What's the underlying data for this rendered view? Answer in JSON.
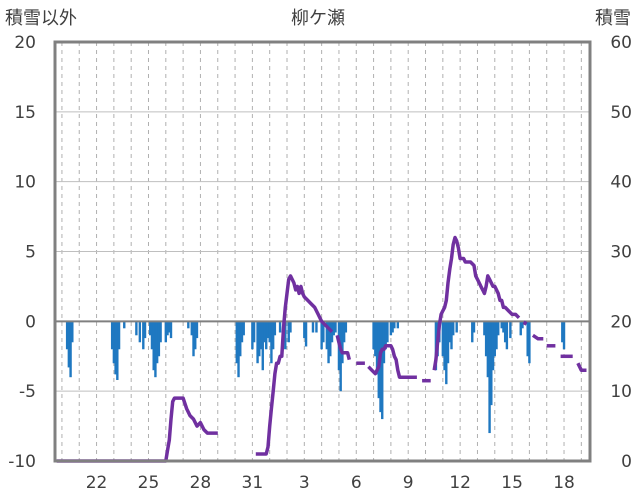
{
  "chart_data": {
    "type": "bar+line",
    "title": "柳ケ瀬",
    "left_axis": {
      "label": "積雪以外",
      "min": -10,
      "max": 20,
      "ticks": [
        -10,
        -5,
        0,
        5,
        10,
        15,
        20
      ]
    },
    "right_axis": {
      "label": "積雪",
      "min": 0,
      "max": 60,
      "ticks": [
        0,
        10,
        20,
        30,
        40,
        50,
        60
      ]
    },
    "x_axis": {
      "day_min": 20,
      "day_max": 49,
      "tick_days": [
        22,
        25,
        28,
        31,
        34,
        37,
        40,
        43,
        46,
        49
      ],
      "tick_labels": [
        "22",
        "25",
        "28",
        "31",
        "3",
        "6",
        "9",
        "12",
        "15",
        "18"
      ]
    },
    "gridlines": "vertical-dashed-every-day, horizontal-solid-at-left-ticks",
    "colors": {
      "bars": "#1f78c1",
      "line": "#7030a0",
      "zero_line": "#808080",
      "grid": "#b0b0b0",
      "frame": "#808080"
    },
    "series": [
      {
        "kind": "bar",
        "axis": "left",
        "points": [
          [
            20.3,
            -2.0
          ],
          [
            20.4,
            -3.3
          ],
          [
            20.5,
            -4.0
          ],
          [
            20.6,
            -1.5
          ],
          [
            22.9,
            -2.0
          ],
          [
            23.0,
            -3.0
          ],
          [
            23.1,
            -3.8
          ],
          [
            23.2,
            -4.2
          ],
          [
            23.3,
            -2.0
          ],
          [
            23.6,
            -0.5
          ],
          [
            24.3,
            -1.0
          ],
          [
            24.5,
            -1.5
          ],
          [
            24.7,
            -2.0
          ],
          [
            24.8,
            -1.2
          ],
          [
            25.1,
            -1.0
          ],
          [
            25.2,
            -2.0
          ],
          [
            25.3,
            -3.5
          ],
          [
            25.4,
            -4.0
          ],
          [
            25.5,
            -3.0
          ],
          [
            25.6,
            -2.5
          ],
          [
            25.7,
            -1.5
          ],
          [
            26.0,
            -1.5
          ],
          [
            26.1,
            -1.0
          ],
          [
            26.2,
            -0.8
          ],
          [
            26.3,
            -1.2
          ],
          [
            27.3,
            -0.5
          ],
          [
            27.5,
            -1.0
          ],
          [
            27.6,
            -2.5
          ],
          [
            27.7,
            -2.0
          ],
          [
            27.8,
            -1.2
          ],
          [
            30.1,
            -3.0
          ],
          [
            30.2,
            -4.0
          ],
          [
            30.3,
            -2.5
          ],
          [
            30.4,
            -1.5
          ],
          [
            30.5,
            -1.0
          ],
          [
            31.0,
            -2.0
          ],
          [
            31.1,
            -1.5
          ],
          [
            31.3,
            -3.0
          ],
          [
            31.4,
            -2.5
          ],
          [
            31.5,
            -2.0
          ],
          [
            31.6,
            -3.5
          ],
          [
            31.7,
            -1.5
          ],
          [
            31.8,
            -2.0
          ],
          [
            31.9,
            -1.2
          ],
          [
            32.0,
            -1.5
          ],
          [
            32.1,
            -3.0
          ],
          [
            32.2,
            -2.0
          ],
          [
            32.3,
            -1.0
          ],
          [
            32.6,
            -0.8
          ],
          [
            32.8,
            -1.5
          ],
          [
            32.9,
            -2.0
          ],
          [
            33.1,
            -1.5
          ],
          [
            33.2,
            -0.8
          ],
          [
            34.0,
            -1.2
          ],
          [
            34.1,
            -1.8
          ],
          [
            34.5,
            -0.8
          ],
          [
            34.7,
            -0.8
          ],
          [
            35.0,
            -2.0
          ],
          [
            35.1,
            -1.5
          ],
          [
            35.3,
            -2.0
          ],
          [
            35.4,
            -3.0
          ],
          [
            35.5,
            -2.5
          ],
          [
            35.6,
            -1.5
          ],
          [
            35.7,
            -1.0
          ],
          [
            35.8,
            -0.8
          ],
          [
            36.0,
            -3.5
          ],
          [
            36.1,
            -5.0
          ],
          [
            36.2,
            -3.0
          ],
          [
            36.3,
            -1.5
          ],
          [
            36.4,
            -0.8
          ],
          [
            38.0,
            -2.0
          ],
          [
            38.1,
            -2.5
          ],
          [
            38.2,
            -3.8
          ],
          [
            38.3,
            -5.5
          ],
          [
            38.4,
            -6.5
          ],
          [
            38.5,
            -7.0
          ],
          [
            38.6,
            -3.0
          ],
          [
            38.7,
            -2.0
          ],
          [
            38.8,
            -1.5
          ],
          [
            39.0,
            -1.0
          ],
          [
            39.1,
            -0.8
          ],
          [
            39.2,
            -0.5
          ],
          [
            39.4,
            -0.5
          ],
          [
            41.6,
            -3.5
          ],
          [
            41.7,
            -2.5
          ],
          [
            41.8,
            -1.5
          ],
          [
            42.0,
            -2.5
          ],
          [
            42.1,
            -3.5
          ],
          [
            42.2,
            -4.5
          ],
          [
            42.3,
            -3.0
          ],
          [
            42.4,
            -1.5
          ],
          [
            42.5,
            -2.0
          ],
          [
            42.6,
            -1.0
          ],
          [
            42.8,
            -0.8
          ],
          [
            43.7,
            -1.5
          ],
          [
            43.8,
            -0.8
          ],
          [
            44.4,
            -1.0
          ],
          [
            44.5,
            -2.5
          ],
          [
            44.6,
            -4.0
          ],
          [
            44.7,
            -8.0
          ],
          [
            44.8,
            -6.0
          ],
          [
            44.9,
            -3.5
          ],
          [
            45.0,
            -2.5
          ],
          [
            45.1,
            -2.0
          ],
          [
            45.2,
            -1.0
          ],
          [
            45.4,
            -0.5
          ],
          [
            45.5,
            -0.8
          ],
          [
            45.6,
            -1.5
          ],
          [
            45.7,
            -2.0
          ],
          [
            45.9,
            -1.2
          ],
          [
            46.5,
            -1.0
          ],
          [
            46.6,
            -0.5
          ],
          [
            46.9,
            -2.5
          ],
          [
            47.0,
            -3.0
          ],
          [
            48.9,
            -1.5
          ],
          [
            49.0,
            -2.0
          ]
        ]
      },
      {
        "kind": "line",
        "axis": "right",
        "segments": [
          [
            [
              19.7,
              0.0
            ],
            [
              26.0,
              0.0
            ],
            [
              26.1,
              1.5
            ],
            [
              26.2,
              3.0
            ],
            [
              26.3,
              6.0
            ],
            [
              26.4,
              8.5
            ],
            [
              26.5,
              9.0
            ],
            [
              27.0,
              9.0
            ],
            [
              27.2,
              7.5
            ],
            [
              27.4,
              6.5
            ],
            [
              27.6,
              6.0
            ],
            [
              27.8,
              5.0
            ],
            [
              28.0,
              5.5
            ],
            [
              28.2,
              4.5
            ],
            [
              28.4,
              4.0
            ],
            [
              28.6,
              4.0
            ],
            [
              28.8,
              4.0
            ],
            [
              29.0,
              4.0
            ]
          ],
          [
            [
              31.2,
              1.0
            ],
            [
              31.8,
              1.0
            ],
            [
              31.9,
              2.0
            ],
            [
              32.0,
              5.0
            ],
            [
              32.1,
              7.5
            ],
            [
              32.2,
              10.0
            ],
            [
              32.3,
              12.5
            ],
            [
              32.4,
              14.0
            ],
            [
              32.5,
              14.0
            ],
            [
              32.6,
              15.0
            ],
            [
              32.7,
              15.0
            ],
            [
              32.8,
              19.0
            ],
            [
              32.9,
              22.0
            ],
            [
              33.0,
              24.0
            ],
            [
              33.1,
              26.0
            ],
            [
              33.2,
              26.5
            ],
            [
              33.3,
              26.0
            ],
            [
              33.4,
              25.5
            ],
            [
              33.5,
              24.5
            ],
            [
              33.6,
              25.0
            ],
            [
              33.7,
              24.0
            ],
            [
              33.8,
              25.0
            ],
            [
              33.9,
              24.0
            ],
            [
              34.0,
              23.5
            ],
            [
              34.2,
              23.0
            ],
            [
              34.4,
              22.5
            ],
            [
              34.6,
              22.0
            ],
            [
              34.8,
              21.0
            ],
            [
              35.0,
              20.0
            ],
            [
              35.2,
              19.5
            ],
            [
              35.4,
              19.0
            ],
            [
              35.6,
              18.5
            ]
          ],
          [
            [
              35.9,
              18.0
            ],
            [
              36.0,
              17.0
            ],
            [
              36.1,
              16.0
            ],
            [
              36.2,
              15.5
            ],
            [
              36.3,
              15.5
            ],
            [
              36.4,
              15.5
            ],
            [
              36.5,
              15.5
            ],
            [
              36.6,
              14.5
            ]
          ],
          [
            [
              37.0,
              14.0
            ],
            [
              37.5,
              14.0
            ]
          ],
          [
            [
              37.7,
              13.5
            ],
            [
              37.9,
              13.0
            ],
            [
              38.1,
              12.5
            ],
            [
              38.3,
              13.5
            ],
            [
              38.4,
              15.5
            ],
            [
              38.5,
              16.0
            ],
            [
              38.6,
              16.0
            ],
            [
              38.7,
              16.5
            ],
            [
              38.9,
              16.5
            ],
            [
              39.0,
              16.5
            ],
            [
              39.1,
              16.0
            ],
            [
              39.2,
              15.0
            ],
            [
              39.3,
              14.5
            ],
            [
              39.4,
              13.0
            ],
            [
              39.5,
              12.0
            ],
            [
              39.6,
              12.0
            ],
            [
              40.0,
              12.0
            ],
            [
              40.5,
              12.0
            ]
          ],
          [
            [
              40.8,
              11.5
            ],
            [
              41.3,
              11.5
            ]
          ],
          [
            [
              41.5,
              13.0
            ],
            [
              41.6,
              14.5
            ],
            [
              41.7,
              17.0
            ],
            [
              41.8,
              19.5
            ],
            [
              41.9,
              21.0
            ],
            [
              42.0,
              21.5
            ],
            [
              42.1,
              22.0
            ],
            [
              42.2,
              23.0
            ],
            [
              42.3,
              25.5
            ],
            [
              42.4,
              27.5
            ],
            [
              42.5,
              29.0
            ],
            [
              42.6,
              31.0
            ],
            [
              42.7,
              32.0
            ],
            [
              42.8,
              31.5
            ],
            [
              42.9,
              30.5
            ],
            [
              43.0,
              29.0
            ],
            [
              43.2,
              29.0
            ],
            [
              43.3,
              28.5
            ],
            [
              43.6,
              28.5
            ],
            [
              43.8,
              28.0
            ],
            [
              43.9,
              26.5
            ],
            [
              44.0,
              26.0
            ],
            [
              44.1,
              25.5
            ],
            [
              44.2,
              25.0
            ],
            [
              44.3,
              24.5
            ],
            [
              44.4,
              24.0
            ],
            [
              44.5,
              25.0
            ],
            [
              44.6,
              26.5
            ],
            [
              44.7,
              26.0
            ],
            [
              44.8,
              25.5
            ],
            [
              44.9,
              25.0
            ],
            [
              45.0,
              25.0
            ],
            [
              45.2,
              24.0
            ],
            [
              45.3,
              23.0
            ],
            [
              45.4,
              23.0
            ],
            [
              45.5,
              22.0
            ],
            [
              45.6,
              22.0
            ],
            [
              45.8,
              21.5
            ],
            [
              46.0,
              21.0
            ],
            [
              46.2,
              21.0
            ],
            [
              46.4,
              20.5
            ]
          ],
          [
            [
              46.7,
              19.5
            ],
            [
              46.8,
              20.0
            ]
          ],
          [
            [
              47.2,
              18.0
            ],
            [
              47.5,
              17.5
            ],
            [
              47.8,
              17.5
            ]
          ],
          [
            [
              48.0,
              16.5
            ],
            [
              48.5,
              16.5
            ]
          ],
          [
            [
              48.8,
              15.0
            ],
            [
              49.5,
              15.0
            ]
          ],
          [
            [
              49.8,
              14.0
            ],
            [
              50.0,
              13.0
            ],
            [
              50.3,
              13.0
            ]
          ]
        ]
      }
    ]
  }
}
